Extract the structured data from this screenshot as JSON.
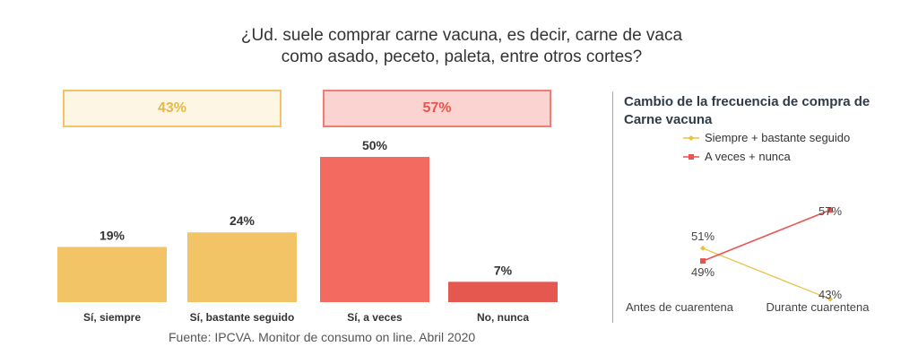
{
  "title_line1": "¿Ud. suele comprar carne vacuna, es decir, carne de vaca",
  "title_line2": "como asado, peceto, paleta, entre otros cortes?",
  "group_boxes": [
    {
      "label": "43%"
    },
    {
      "label": "57%"
    }
  ],
  "colors": {
    "bar_yellow": "#f2c466",
    "bar_red": "#f26a60",
    "bar_darkred": "#e5584f",
    "line_yellow": "#e8c13e",
    "line_red": "#e8554f"
  },
  "source": "Fuente: IPCVA. Monitor de consumo on line. Abril 2020",
  "chart_data": [
    {
      "type": "bar",
      "categories": [
        "Sí, siempre",
        "Sí, bastante seguido",
        "Sí, a veces",
        "No, nunca"
      ],
      "values": [
        19,
        24,
        50,
        7
      ],
      "labels": [
        "19%",
        "24%",
        "50%",
        "7%"
      ],
      "ylim": [
        0,
        50
      ]
    },
    {
      "type": "line",
      "title_line1": "Cambio de la frecuencia de compra de",
      "title_line2": "Carne vacuna",
      "categories": [
        "Antes de cuarentena",
        "Durante cuarentena"
      ],
      "series": [
        {
          "name": "Siempre + bastante seguido",
          "values": [
            51,
            43
          ],
          "labels": [
            "51%",
            "43%"
          ]
        },
        {
          "name": "A veces + nunca",
          "values": [
            49,
            57
          ],
          "labels": [
            "49%",
            "57%"
          ]
        }
      ]
    }
  ]
}
